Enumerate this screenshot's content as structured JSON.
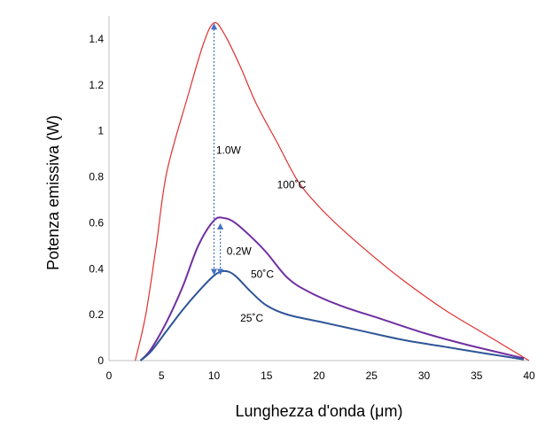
{
  "chart_data": {
    "type": "line",
    "title": "",
    "xlabel": "Lunghezza d'onda (μm)",
    "ylabel": "Potenza emissiva (W)",
    "xlim": [
      0,
      40
    ],
    "ylim": [
      0,
      1.5
    ],
    "x_ticks": [
      "0",
      "5",
      "10",
      "15",
      "20",
      "25",
      "30",
      "35",
      "40"
    ],
    "x_tick_values": [
      0,
      5,
      10,
      15,
      20,
      25,
      30,
      35,
      40
    ],
    "y_ticks": [
      "0",
      "0.2",
      "0.4",
      "0.6",
      "0.8",
      "1",
      "1.2",
      "1.4"
    ],
    "y_tick_values": [
      0,
      0.2,
      0.4,
      0.6,
      0.8,
      1.0,
      1.2,
      1.4
    ],
    "grid": false,
    "legend": "none",
    "series": [
      {
        "name": "100˚C",
        "color": "#e0302e",
        "points": [
          [
            2.5,
            0
          ],
          [
            3.5,
            0.2
          ],
          [
            4.5,
            0.5
          ],
          [
            5.5,
            0.82
          ],
          [
            7.5,
            1.15
          ],
          [
            9,
            1.38
          ],
          [
            10,
            1.47
          ],
          [
            11,
            1.42
          ],
          [
            12.5,
            1.28
          ],
          [
            14,
            1.12
          ],
          [
            16,
            0.95
          ],
          [
            18,
            0.78
          ],
          [
            20,
            0.67
          ],
          [
            22,
            0.58
          ],
          [
            25,
            0.46
          ],
          [
            28,
            0.35
          ],
          [
            32,
            0.22
          ],
          [
            36,
            0.11
          ],
          [
            40,
            0
          ]
        ]
      },
      {
        "name": "50˚C",
        "color": "#7030a0",
        "points": [
          [
            3,
            0
          ],
          [
            4,
            0.05
          ],
          [
            5.5,
            0.17
          ],
          [
            7,
            0.32
          ],
          [
            8.5,
            0.5
          ],
          [
            10,
            0.61
          ],
          [
            11,
            0.62
          ],
          [
            12,
            0.6
          ],
          [
            13.5,
            0.54
          ],
          [
            15,
            0.47
          ],
          [
            17,
            0.36
          ],
          [
            19,
            0.3
          ],
          [
            22,
            0.24
          ],
          [
            26,
            0.18
          ],
          [
            30,
            0.12
          ],
          [
            34,
            0.07
          ],
          [
            39.5,
            0.01
          ]
        ]
      },
      {
        "name": "25˚C",
        "color": "#2f5597",
        "points": [
          [
            3,
            0
          ],
          [
            4,
            0.04
          ],
          [
            5.5,
            0.13
          ],
          [
            7,
            0.22
          ],
          [
            8.5,
            0.3
          ],
          [
            10,
            0.37
          ],
          [
            11,
            0.39
          ],
          [
            12,
            0.37
          ],
          [
            13.5,
            0.3
          ],
          [
            15,
            0.24
          ],
          [
            17,
            0.2
          ],
          [
            20,
            0.17
          ],
          [
            24,
            0.13
          ],
          [
            28,
            0.09
          ],
          [
            32,
            0.06
          ],
          [
            36,
            0.03
          ],
          [
            39.5,
            0.005
          ]
        ]
      }
    ],
    "series_labels": [
      {
        "text": "100˚C",
        "x": 16,
        "y": 0.75
      },
      {
        "text": "50˚C",
        "x": 13.5,
        "y": 0.36
      },
      {
        "text": "25˚C",
        "x": 12.5,
        "y": 0.17
      }
    ],
    "annotations": [
      {
        "text": "1.0W",
        "x_from": 10,
        "y_from": 0.37,
        "x_to": 10,
        "y_to": 1.47,
        "label_x": 10.2,
        "label_y": 0.9
      },
      {
        "text": "0.2W",
        "x_from": 10.6,
        "y_from": 0.37,
        "x_to": 10.6,
        "y_to": 0.6,
        "label_x": 11.2,
        "label_y": 0.46
      }
    ],
    "arrow_color": "#4472c4"
  }
}
